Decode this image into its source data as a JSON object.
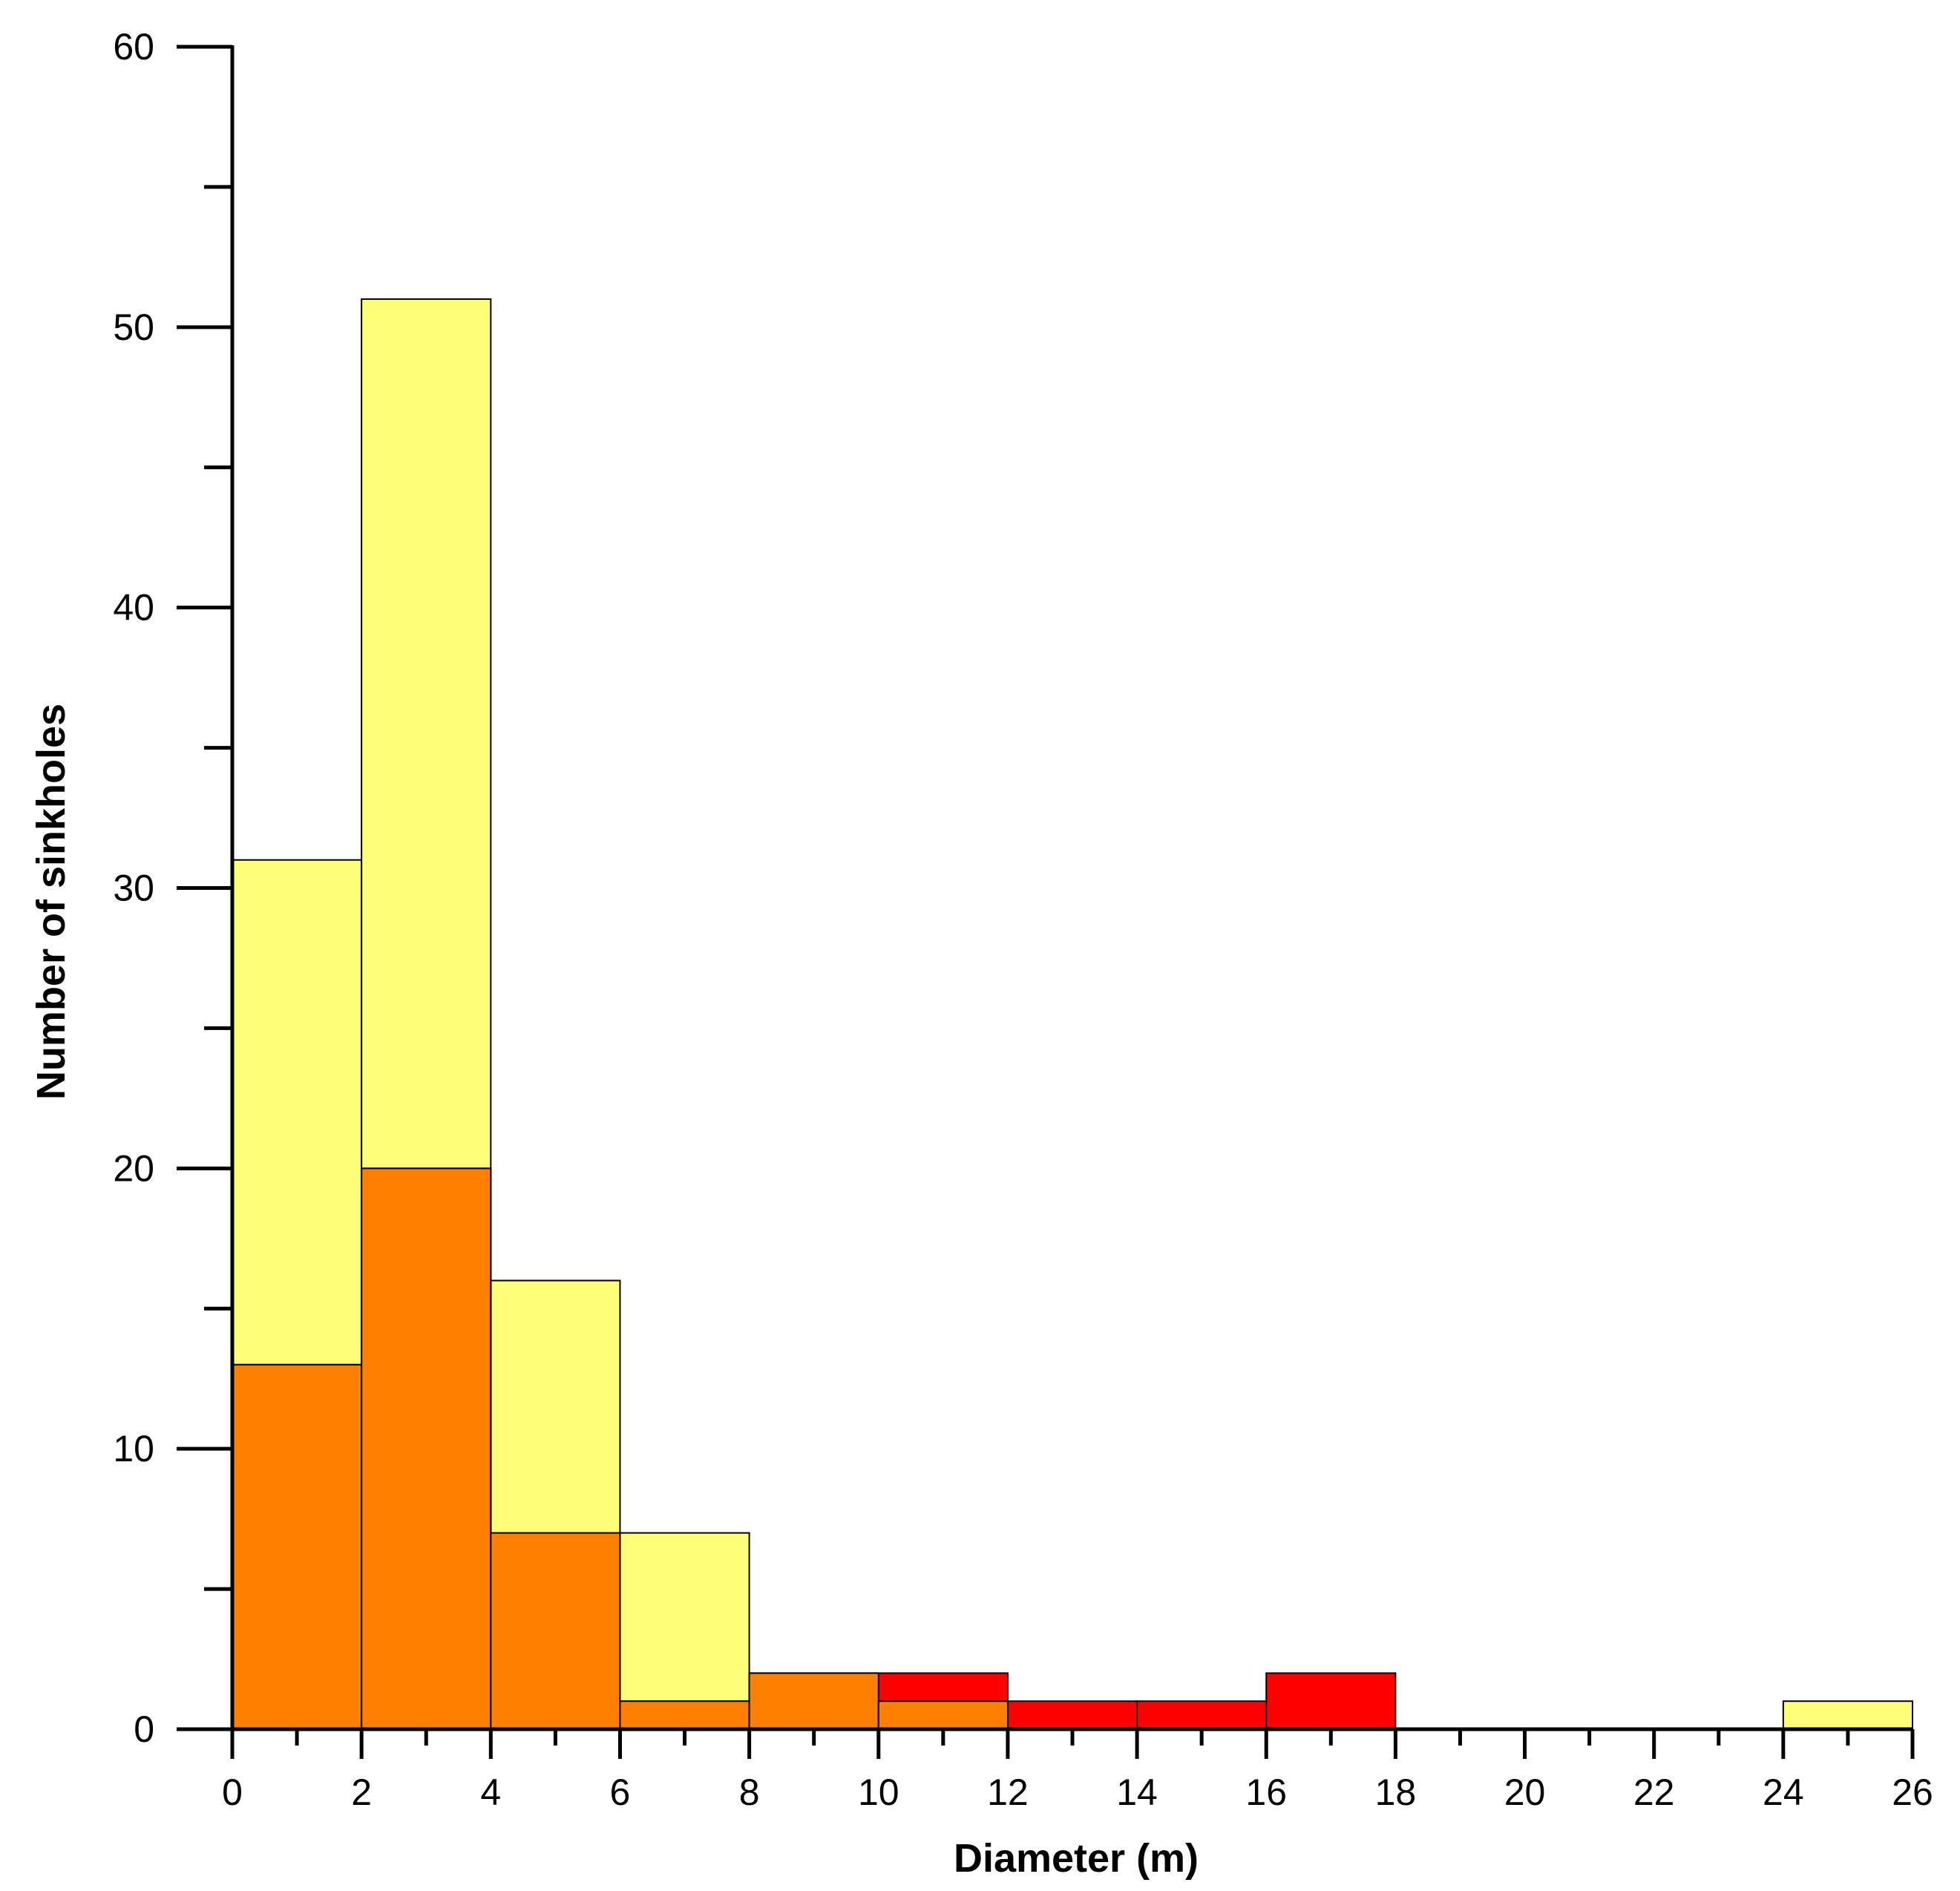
{
  "chart_data": {
    "type": "bar",
    "xlabel": "Diameter (m)",
    "ylabel": "Number of sinkholes",
    "xlim": [
      0,
      26
    ],
    "ylim": [
      0,
      60
    ],
    "x_ticks": [
      0,
      2,
      4,
      6,
      8,
      10,
      12,
      14,
      16,
      18,
      20,
      22,
      24,
      26
    ],
    "y_ticks": [
      0,
      10,
      20,
      30,
      40,
      50,
      60
    ],
    "bin_edges": [
      0,
      2,
      4,
      6,
      8,
      10,
      12,
      14,
      16,
      18,
      20,
      22,
      24,
      26
    ],
    "series": [
      {
        "color": "#ffff77",
        "values": [
          31,
          51,
          16,
          7,
          2,
          1,
          0,
          0,
          0,
          0,
          0,
          0,
          1
        ]
      },
      {
        "color": "#ff0000",
        "values": [
          13,
          20,
          7,
          1,
          2,
          2,
          1,
          1,
          2,
          0,
          0,
          0,
          0
        ]
      },
      {
        "color": "#ff8000",
        "values": [
          13,
          20,
          7,
          1,
          2,
          1,
          0,
          0,
          0,
          0,
          0,
          0,
          0
        ]
      }
    ],
    "grid": false,
    "legend": "none"
  }
}
